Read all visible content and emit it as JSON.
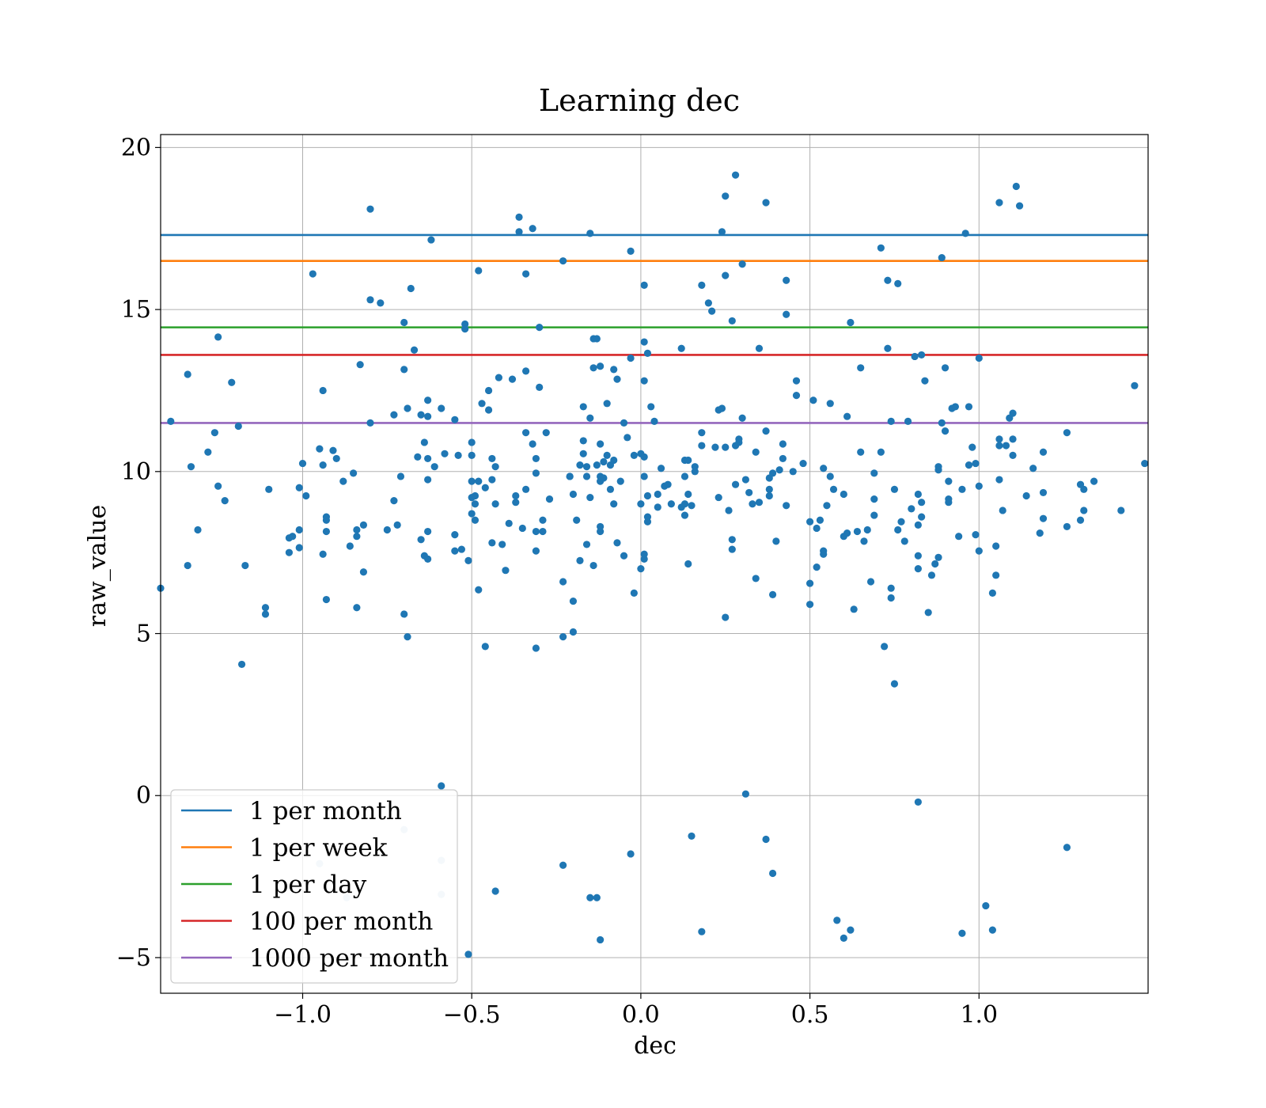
{
  "chart_data": {
    "type": "scatter",
    "title": "Learning dec",
    "xlabel": "dec",
    "ylabel": "raw_value",
    "xlim": [
      -1.42,
      1.5
    ],
    "ylim": [
      -6.1,
      20.4
    ],
    "xticks": [
      -1.0,
      -0.5,
      0.0,
      0.5,
      1.0
    ],
    "xtick_labels": [
      "−1.0",
      "−0.5",
      "0.0",
      "0.5",
      "1.0"
    ],
    "yticks": [
      -5,
      0,
      5,
      10,
      15,
      20
    ],
    "ytick_labels": [
      "−5",
      "0",
      "5",
      "10",
      "15",
      "20"
    ],
    "grid": true,
    "legend_position": "lower-left",
    "point_color": "#1f77b4",
    "reference_lines": [
      {
        "name": "1 per month",
        "y": 17.3,
        "color": "#1f77b4"
      },
      {
        "name": "1 per week",
        "y": 16.5,
        "color": "#ff7f0e"
      },
      {
        "name": "1 per day",
        "y": 14.45,
        "color": "#2ca02c"
      },
      {
        "name": "100 per month",
        "y": 13.6,
        "color": "#d62728"
      },
      {
        "name": "1000 per month",
        "y": 11.5,
        "color": "#9467bd"
      }
    ],
    "points": [
      [
        -1.42,
        6.4
      ],
      [
        -1.39,
        11.55
      ],
      [
        -1.34,
        13.0
      ],
      [
        -1.33,
        10.15
      ],
      [
        -1.34,
        7.1
      ],
      [
        -1.31,
        8.2
      ],
      [
        -1.28,
        10.6
      ],
      [
        -1.26,
        11.2
      ],
      [
        -1.25,
        14.15
      ],
      [
        -1.25,
        9.55
      ],
      [
        -1.23,
        9.1
      ],
      [
        -1.21,
        12.75
      ],
      [
        -1.19,
        11.4
      ],
      [
        -1.18,
        4.05
      ],
      [
        -1.17,
        7.1
      ],
      [
        -1.11,
        5.6
      ],
      [
        -1.11,
        5.8
      ],
      [
        -1.1,
        9.45
      ],
      [
        -1.04,
        7.5
      ],
      [
        -1.04,
        7.95
      ],
      [
        -1.03,
        8.0
      ],
      [
        -1.01,
        8.2
      ],
      [
        -1.01,
        9.5
      ],
      [
        -1.01,
        7.65
      ],
      [
        -1.0,
        10.25
      ],
      [
        -0.99,
        9.25
      ],
      [
        -0.97,
        16.1
      ],
      [
        -0.95,
        10.7
      ],
      [
        -0.94,
        12.5
      ],
      [
        -0.94,
        10.2
      ],
      [
        -0.94,
        7.45
      ],
      [
        -0.93,
        8.15
      ],
      [
        -0.93,
        8.5
      ],
      [
        -0.93,
        8.6
      ],
      [
        -0.93,
        6.05
      ],
      [
        -0.91,
        10.65
      ],
      [
        -0.9,
        10.4
      ],
      [
        -0.88,
        9.7
      ],
      [
        -0.86,
        7.7
      ],
      [
        -0.85,
        9.95
      ],
      [
        -0.84,
        8.0
      ],
      [
        -0.84,
        8.2
      ],
      [
        -0.84,
        5.8
      ],
      [
        -0.83,
        13.3
      ],
      [
        -0.82,
        8.35
      ],
      [
        -0.82,
        6.9
      ],
      [
        -0.8,
        18.1
      ],
      [
        -0.8,
        15.3
      ],
      [
        -0.8,
        11.5
      ],
      [
        -0.77,
        15.2
      ],
      [
        -0.75,
        8.2
      ],
      [
        -0.73,
        11.75
      ],
      [
        -0.73,
        9.1
      ],
      [
        -0.72,
        8.35
      ],
      [
        -0.71,
        9.85
      ],
      [
        -0.7,
        14.6
      ],
      [
        -0.7,
        13.15
      ],
      [
        -0.7,
        5.6
      ],
      [
        -0.69,
        4.9
      ],
      [
        -0.69,
        11.95
      ],
      [
        -0.68,
        15.65
      ],
      [
        -0.67,
        13.75
      ],
      [
        -0.66,
        10.45
      ],
      [
        -0.65,
        11.75
      ],
      [
        -0.65,
        7.9
      ],
      [
        -0.64,
        7.4
      ],
      [
        -0.64,
        10.9
      ],
      [
        -0.63,
        9.75
      ],
      [
        -0.63,
        12.2
      ],
      [
        -0.63,
        8.15
      ],
      [
        -0.63,
        7.3
      ],
      [
        -0.63,
        10.4
      ],
      [
        -0.63,
        11.7
      ],
      [
        -0.62,
        17.15
      ],
      [
        -0.61,
        10.15
      ],
      [
        -0.59,
        11.95
      ],
      [
        -0.58,
        10.55
      ],
      [
        -0.55,
        11.6
      ],
      [
        -0.55,
        8.05
      ],
      [
        -0.55,
        7.55
      ],
      [
        -0.54,
        10.5
      ],
      [
        -0.53,
        7.6
      ],
      [
        -0.52,
        14.55
      ],
      [
        -0.52,
        14.4
      ],
      [
        -0.51,
        7.25
      ],
      [
        -0.5,
        8.7
      ],
      [
        -0.5,
        10.9
      ],
      [
        -0.5,
        10.5
      ],
      [
        -0.5,
        9.7
      ],
      [
        -0.5,
        9.2
      ],
      [
        -0.49,
        9.25
      ],
      [
        -0.49,
        9.0
      ],
      [
        -0.49,
        8.5
      ],
      [
        -0.48,
        9.7
      ],
      [
        -0.48,
        6.35
      ],
      [
        -0.48,
        16.2
      ],
      [
        -0.47,
        12.1
      ],
      [
        -0.46,
        9.5
      ],
      [
        -0.46,
        4.6
      ],
      [
        -0.45,
        12.5
      ],
      [
        -0.45,
        11.9
      ],
      [
        -0.44,
        9.75
      ],
      [
        -0.44,
        10.4
      ],
      [
        -0.44,
        7.8
      ],
      [
        -0.43,
        10.15
      ],
      [
        -0.43,
        9.0
      ],
      [
        -0.42,
        12.9
      ],
      [
        -0.41,
        7.75
      ],
      [
        -0.4,
        6.95
      ],
      [
        -0.39,
        8.4
      ],
      [
        -0.38,
        12.85
      ],
      [
        -0.37,
        9.05
      ],
      [
        -0.37,
        9.25
      ],
      [
        -0.36,
        17.85
      ],
      [
        -0.36,
        17.4
      ],
      [
        -0.35,
        8.25
      ],
      [
        -0.34,
        11.2
      ],
      [
        -0.34,
        16.1
      ],
      [
        -0.34,
        13.1
      ],
      [
        -0.34,
        9.45
      ],
      [
        -0.32,
        10.85
      ],
      [
        -0.32,
        17.5
      ],
      [
        -0.31,
        10.4
      ],
      [
        -0.31,
        9.95
      ],
      [
        -0.31,
        8.15
      ],
      [
        -0.31,
        7.55
      ],
      [
        -0.31,
        4.55
      ],
      [
        -0.3,
        14.45
      ],
      [
        -0.3,
        12.6
      ],
      [
        -0.29,
        8.5
      ],
      [
        -0.29,
        8.15
      ],
      [
        -0.28,
        11.2
      ],
      [
        -0.27,
        9.15
      ],
      [
        -0.23,
        6.6
      ],
      [
        -0.23,
        4.9
      ],
      [
        -0.23,
        16.5
      ],
      [
        -0.21,
        9.85
      ],
      [
        -0.21,
        9.85
      ],
      [
        -0.2,
        9.3
      ],
      [
        -0.2,
        6.0
      ],
      [
        -0.2,
        5.05
      ],
      [
        -0.19,
        8.5
      ],
      [
        -0.18,
        7.25
      ],
      [
        -0.18,
        10.2
      ],
      [
        -0.17,
        12.0
      ],
      [
        -0.17,
        10.95
      ],
      [
        -0.17,
        10.55
      ],
      [
        -0.16,
        9.85
      ],
      [
        -0.16,
        7.75
      ],
      [
        -0.16,
        10.15
      ],
      [
        -0.15,
        17.35
      ],
      [
        -0.15,
        11.65
      ],
      [
        -0.15,
        9.2
      ],
      [
        -0.14,
        13.2
      ],
      [
        -0.14,
        7.1
      ],
      [
        -0.14,
        14.1
      ],
      [
        -0.13,
        14.1
      ],
      [
        -0.13,
        10.2
      ],
      [
        -0.12,
        13.25
      ],
      [
        -0.12,
        10.85
      ],
      [
        -0.12,
        9.7
      ],
      [
        -0.12,
        9.85
      ],
      [
        -0.12,
        8.3
      ],
      [
        -0.12,
        8.15
      ],
      [
        -0.11,
        9.8
      ],
      [
        -0.11,
        10.3
      ],
      [
        -0.1,
        12.1
      ],
      [
        -0.1,
        10.5
      ],
      [
        -0.09,
        9.45
      ],
      [
        -0.09,
        10.2
      ],
      [
        -0.08,
        10.35
      ],
      [
        -0.08,
        13.15
      ],
      [
        -0.08,
        9.0
      ],
      [
        -0.07,
        12.85
      ],
      [
        -0.07,
        7.8
      ],
      [
        -0.06,
        9.7
      ],
      [
        -0.05,
        11.5
      ],
      [
        -0.05,
        7.4
      ],
      [
        -0.04,
        11.05
      ],
      [
        -0.03,
        16.8
      ],
      [
        -0.03,
        13.5
      ],
      [
        -0.02,
        10.5
      ],
      [
        -0.02,
        6.25
      ],
      [
        0.0,
        10.55
      ],
      [
        0.0,
        9.0
      ],
      [
        0.0,
        7.0
      ],
      [
        0.01,
        15.75
      ],
      [
        0.01,
        14.0
      ],
      [
        0.01,
        12.8
      ],
      [
        0.01,
        10.45
      ],
      [
        0.01,
        9.85
      ],
      [
        0.01,
        7.3
      ],
      [
        0.01,
        7.45
      ],
      [
        0.02,
        8.6
      ],
      [
        0.02,
        8.45
      ],
      [
        0.02,
        9.25
      ],
      [
        0.02,
        13.65
      ],
      [
        0.03,
        12.0
      ],
      [
        0.04,
        11.55
      ],
      [
        0.05,
        9.3
      ],
      [
        0.05,
        8.9
      ],
      [
        0.06,
        10.1
      ],
      [
        0.07,
        9.55
      ],
      [
        0.08,
        9.6
      ],
      [
        0.09,
        9.0
      ],
      [
        0.12,
        13.8
      ],
      [
        0.12,
        8.9
      ],
      [
        0.13,
        10.35
      ],
      [
        0.13,
        9.85
      ],
      [
        0.13,
        9.0
      ],
      [
        0.13,
        8.65
      ],
      [
        0.14,
        9.3
      ],
      [
        0.14,
        7.15
      ],
      [
        0.14,
        10.35
      ],
      [
        0.15,
        8.95
      ],
      [
        0.16,
        10.15
      ],
      [
        0.16,
        10.0
      ],
      [
        0.18,
        15.75
      ],
      [
        0.18,
        11.2
      ],
      [
        0.18,
        10.8
      ],
      [
        0.2,
        15.2
      ],
      [
        0.21,
        14.95
      ],
      [
        0.22,
        10.75
      ],
      [
        0.23,
        11.9
      ],
      [
        0.23,
        9.2
      ],
      [
        0.24,
        17.4
      ],
      [
        0.24,
        11.95
      ],
      [
        0.25,
        16.05
      ],
      [
        0.25,
        10.75
      ],
      [
        0.25,
        5.5
      ],
      [
        0.25,
        18.5
      ],
      [
        0.26,
        8.8
      ],
      [
        0.27,
        14.65
      ],
      [
        0.27,
        7.6
      ],
      [
        0.27,
        7.9
      ],
      [
        0.28,
        10.8
      ],
      [
        0.28,
        19.15
      ],
      [
        0.28,
        9.6
      ],
      [
        0.29,
        10.9
      ],
      [
        0.29,
        11.0
      ],
      [
        0.3,
        16.4
      ],
      [
        0.3,
        11.65
      ],
      [
        0.31,
        9.75
      ],
      [
        0.32,
        9.35
      ],
      [
        0.33,
        9.0
      ],
      [
        0.34,
        10.6
      ],
      [
        0.34,
        6.7
      ],
      [
        0.35,
        9.05
      ],
      [
        0.35,
        13.8
      ],
      [
        0.37,
        18.3
      ],
      [
        0.37,
        11.25
      ],
      [
        0.38,
        9.8
      ],
      [
        0.38,
        9.45
      ],
      [
        0.38,
        9.25
      ],
      [
        0.39,
        9.95
      ],
      [
        0.39,
        6.2
      ],
      [
        0.4,
        7.85
      ],
      [
        0.41,
        10.05
      ],
      [
        0.42,
        10.4
      ],
      [
        0.42,
        10.85
      ],
      [
        0.43,
        14.85
      ],
      [
        0.43,
        8.95
      ],
      [
        0.43,
        15.9
      ],
      [
        0.45,
        10.0
      ],
      [
        0.46,
        12.35
      ],
      [
        0.46,
        12.8
      ],
      [
        0.48,
        10.25
      ],
      [
        0.5,
        8.45
      ],
      [
        0.5,
        6.55
      ],
      [
        0.5,
        5.9
      ],
      [
        0.51,
        12.2
      ],
      [
        0.52,
        8.25
      ],
      [
        0.52,
        7.05
      ],
      [
        0.53,
        8.5
      ],
      [
        0.54,
        7.55
      ],
      [
        0.54,
        10.1
      ],
      [
        0.54,
        7.45
      ],
      [
        0.55,
        8.95
      ],
      [
        0.56,
        12.1
      ],
      [
        0.56,
        9.85
      ],
      [
        0.57,
        9.45
      ],
      [
        0.6,
        9.3
      ],
      [
        0.6,
        8.0
      ],
      [
        0.61,
        11.7
      ],
      [
        0.61,
        8.1
      ],
      [
        0.62,
        14.6
      ],
      [
        0.63,
        5.75
      ],
      [
        0.64,
        8.15
      ],
      [
        0.65,
        10.6
      ],
      [
        0.65,
        13.2
      ],
      [
        0.66,
        7.85
      ],
      [
        0.67,
        8.2
      ],
      [
        0.68,
        6.6
      ],
      [
        0.69,
        9.15
      ],
      [
        0.69,
        8.65
      ],
      [
        0.69,
        9.95
      ],
      [
        0.71,
        16.9
      ],
      [
        0.71,
        10.6
      ],
      [
        0.72,
        4.6
      ],
      [
        0.73,
        15.9
      ],
      [
        0.73,
        13.8
      ],
      [
        0.74,
        6.1
      ],
      [
        0.74,
        6.4
      ],
      [
        0.74,
        11.55
      ],
      [
        0.75,
        9.45
      ],
      [
        0.75,
        3.45
      ],
      [
        0.76,
        15.8
      ],
      [
        0.76,
        8.2
      ],
      [
        0.77,
        8.45
      ],
      [
        0.78,
        7.85
      ],
      [
        0.79,
        11.55
      ],
      [
        0.8,
        8.85
      ],
      [
        0.81,
        13.55
      ],
      [
        0.82,
        7.4
      ],
      [
        0.82,
        8.35
      ],
      [
        0.82,
        9.3
      ],
      [
        0.82,
        7.0
      ],
      [
        0.83,
        13.6
      ],
      [
        0.83,
        9.05
      ],
      [
        0.83,
        8.6
      ],
      [
        0.84,
        12.8
      ],
      [
        0.85,
        5.65
      ],
      [
        0.86,
        6.8
      ],
      [
        0.87,
        7.15
      ],
      [
        0.88,
        10.15
      ],
      [
        0.88,
        10.05
      ],
      [
        0.88,
        7.35
      ],
      [
        0.89,
        11.5
      ],
      [
        0.89,
        16.6
      ],
      [
        0.9,
        13.2
      ],
      [
        0.9,
        11.25
      ],
      [
        0.91,
        9.7
      ],
      [
        0.91,
        9.15
      ],
      [
        0.91,
        9.05
      ],
      [
        0.92,
        11.95
      ],
      [
        0.93,
        12.0
      ],
      [
        0.94,
        8.0
      ],
      [
        0.95,
        9.45
      ],
      [
        0.96,
        17.35
      ],
      [
        0.97,
        12.0
      ],
      [
        0.97,
        10.2
      ],
      [
        0.98,
        10.75
      ],
      [
        0.99,
        8.05
      ],
      [
        0.99,
        10.25
      ],
      [
        1.0,
        13.5
      ],
      [
        1.0,
        9.55
      ],
      [
        1.0,
        7.55
      ],
      [
        1.04,
        6.25
      ],
      [
        1.05,
        7.7
      ],
      [
        1.05,
        6.8
      ],
      [
        1.06,
        11.0
      ],
      [
        1.06,
        10.8
      ],
      [
        1.06,
        18.3
      ],
      [
        1.06,
        9.75
      ],
      [
        1.07,
        8.8
      ],
      [
        1.08,
        10.8
      ],
      [
        1.09,
        11.65
      ],
      [
        1.1,
        11.8
      ],
      [
        1.1,
        11.0
      ],
      [
        1.1,
        10.5
      ],
      [
        1.11,
        18.8
      ],
      [
        1.12,
        18.2
      ],
      [
        1.14,
        9.25
      ],
      [
        1.16,
        10.1
      ],
      [
        1.18,
        8.1
      ],
      [
        1.19,
        10.6
      ],
      [
        1.19,
        9.35
      ],
      [
        1.19,
        8.55
      ],
      [
        1.26,
        11.2
      ],
      [
        1.26,
        8.3
      ],
      [
        1.3,
        9.6
      ],
      [
        1.3,
        8.5
      ],
      [
        1.31,
        9.45
      ],
      [
        1.31,
        8.8
      ],
      [
        1.34,
        9.7
      ],
      [
        1.42,
        8.8
      ],
      [
        1.46,
        12.65
      ],
      [
        1.49,
        10.25
      ],
      [
        -0.59,
        0.3
      ],
      [
        -0.7,
        -1.05
      ],
      [
        -0.95,
        -2.1
      ],
      [
        -0.87,
        -3.15
      ],
      [
        -0.59,
        -2.0
      ],
      [
        -0.59,
        -3.05
      ],
      [
        -0.43,
        -2.95
      ],
      [
        -0.51,
        -4.9
      ],
      [
        -0.23,
        -2.15
      ],
      [
        -0.15,
        -3.15
      ],
      [
        -0.13,
        -3.15
      ],
      [
        -0.12,
        -4.45
      ],
      [
        -0.03,
        -1.8
      ],
      [
        0.15,
        -1.25
      ],
      [
        0.18,
        -4.2
      ],
      [
        0.31,
        0.05
      ],
      [
        0.37,
        -1.35
      ],
      [
        0.39,
        -2.4
      ],
      [
        0.58,
        -3.85
      ],
      [
        0.6,
        -4.4
      ],
      [
        0.62,
        -4.15
      ],
      [
        0.82,
        -0.2
      ],
      [
        0.95,
        -4.25
      ],
      [
        1.02,
        -3.4
      ],
      [
        1.04,
        -4.15
      ],
      [
        1.26,
        -1.6
      ]
    ],
    "faint_points": [
      [
        -0.7,
        -1.05
      ],
      [
        -0.95,
        -2.1
      ],
      [
        -0.87,
        -3.15
      ],
      [
        -0.59,
        -2.0
      ],
      [
        -0.59,
        -3.05
      ]
    ]
  }
}
